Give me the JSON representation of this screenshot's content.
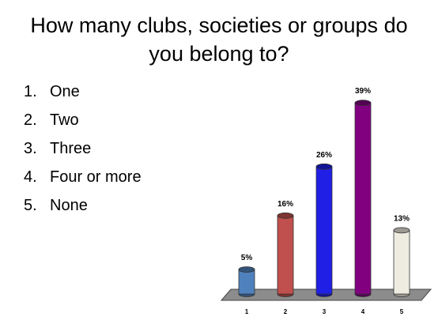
{
  "title": "How many clubs, societies or groups do you belong to?",
  "items": [
    {
      "number": "1.",
      "text": "One"
    },
    {
      "number": "2.",
      "text": "Two"
    },
    {
      "number": "3.",
      "text": "Three"
    },
    {
      "number": "4.",
      "text": "Four or more"
    },
    {
      "number": "5.",
      "text": "None"
    }
  ],
  "chart_data": {
    "type": "bar",
    "categories": [
      "1",
      "2",
      "3",
      "4",
      "5"
    ],
    "values": [
      5,
      16,
      26,
      39,
      13
    ],
    "value_labels": [
      "5%",
      "16%",
      "26%",
      "39%",
      "13%"
    ],
    "colors": [
      "#4f81bd",
      "#c0504d",
      "#1f1fe6",
      "#800080",
      "#eeece1"
    ]
  }
}
